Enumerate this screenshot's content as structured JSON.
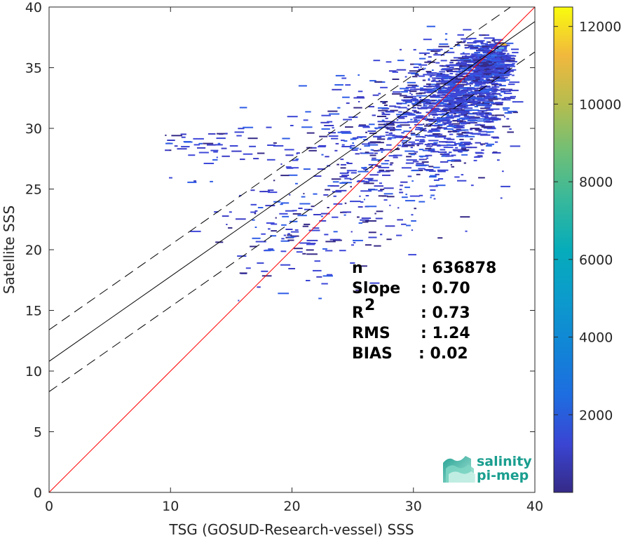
{
  "chart_data": {
    "type": "heatmap",
    "xlabel": "TSG (GOSUD-Research-vessel) SSS",
    "ylabel": "Satellite SSS",
    "xlim": [
      0,
      40
    ],
    "ylim": [
      0,
      40
    ],
    "x_ticks": [
      "0",
      "10",
      "20",
      "30",
      "40"
    ],
    "y_ticks": [
      "0",
      "5",
      "10",
      "15",
      "20",
      "25",
      "30",
      "35",
      "40"
    ],
    "colorbar": {
      "ticks": [
        "2000",
        "4000",
        "6000",
        "8000",
        "10000",
        "12000"
      ],
      "tick_values": [
        2000,
        4000,
        6000,
        8000,
        10000,
        12000
      ],
      "range": [
        0,
        12500
      ],
      "colormap": "parula"
    },
    "lines": [
      {
        "role": "one-to-one",
        "color": "#ff0000",
        "style": "solid",
        "x": [
          0,
          40
        ],
        "y": [
          0,
          40
        ]
      },
      {
        "role": "regression",
        "color": "#000000",
        "style": "solid",
        "x": [
          0,
          40
        ],
        "y": [
          10.8,
          38.8
        ]
      },
      {
        "role": "regression-plus-rms",
        "color": "#000000",
        "style": "dashed",
        "x": [
          0,
          40
        ],
        "y": [
          13.4,
          41.4
        ]
      },
      {
        "role": "regression-minus-rms",
        "color": "#000000",
        "style": "dashed",
        "x": [
          0,
          40
        ],
        "y": [
          8.3,
          36.3
        ]
      }
    ],
    "stats": [
      {
        "label": "n",
        "value": ": 636878"
      },
      {
        "label": "Slope",
        "value": ": 0.70"
      },
      {
        "label": "R",
        "sup": "2",
        "value": ": 0.73"
      },
      {
        "label": "RMS",
        "value": ": 1.24"
      },
      {
        "label": "BIAS",
        "value": ": 0.02"
      }
    ],
    "density_clusters": [
      {
        "cx": 33.5,
        "cy": 32.5,
        "sx": 2.2,
        "sy": 1.8,
        "n": 900
      },
      {
        "cx": 36.0,
        "cy": 35.5,
        "sx": 1.0,
        "sy": 0.9,
        "n": 500
      },
      {
        "cx": 30.0,
        "cy": 29.5,
        "sx": 3.0,
        "sy": 2.5,
        "n": 350
      },
      {
        "cx": 25.0,
        "cy": 26.0,
        "sx": 4.0,
        "sy": 3.2,
        "n": 200
      },
      {
        "cx": 20.0,
        "cy": 22.0,
        "sx": 3.0,
        "sy": 2.6,
        "n": 120
      },
      {
        "cx": 12.0,
        "cy": 28.5,
        "sx": 2.5,
        "sy": 1.2,
        "n": 60
      }
    ]
  },
  "logo": {
    "line1": "salinity",
    "line2": "pi-mep",
    "accent": "#1a9e8f"
  }
}
